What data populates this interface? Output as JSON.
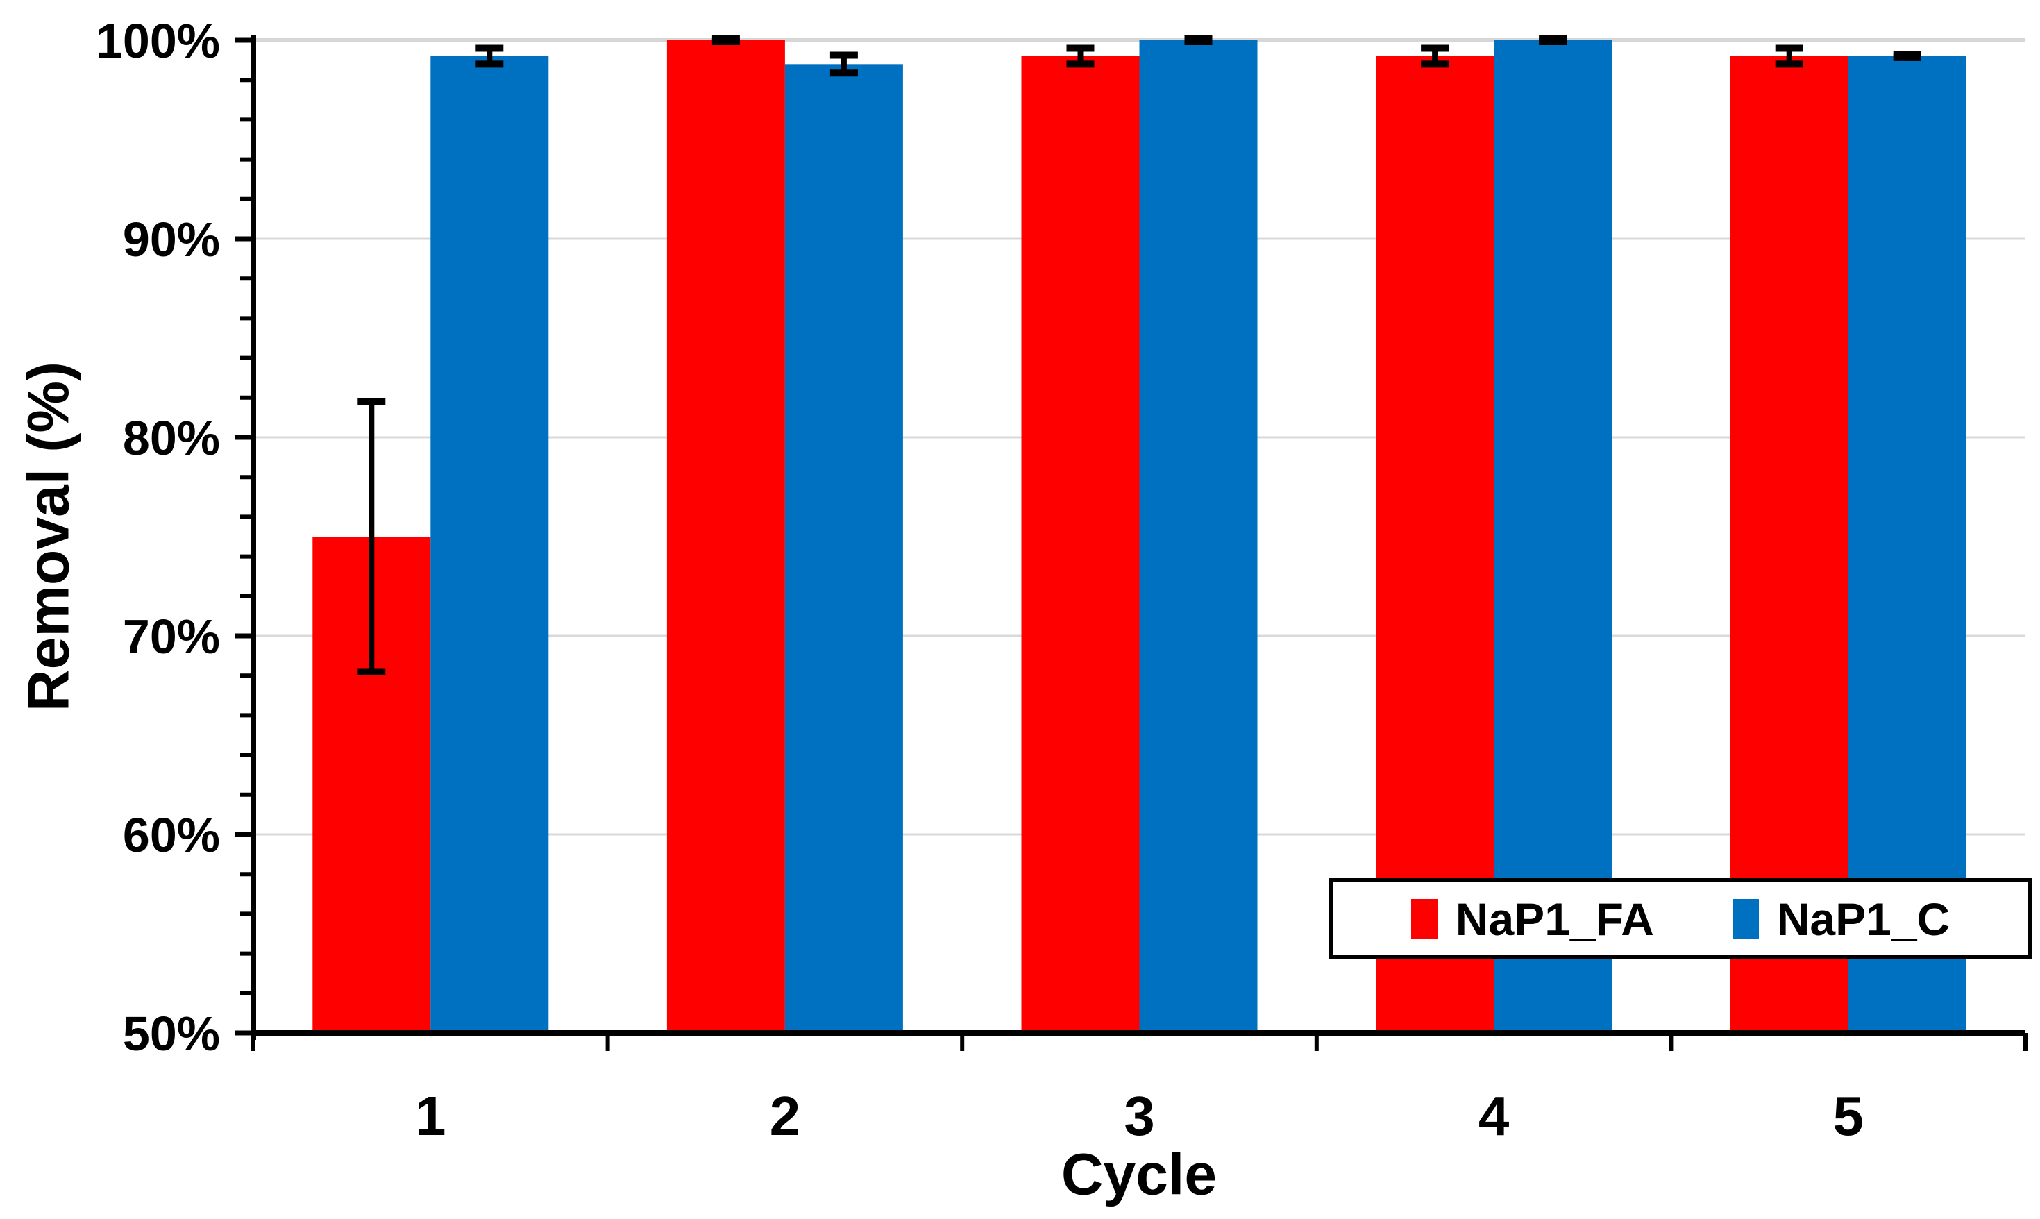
{
  "figure": {
    "background": "#FFFFFF",
    "axis_color": "#000000",
    "gridline_color": "#D9D9D9",
    "top_gridline_color": "#D6D6D6"
  },
  "legend": {
    "items": [
      {
        "label": "NaP1_FA",
        "color": "#FF0000"
      },
      {
        "label": "NaP1_C",
        "color": "#0070C0"
      }
    ]
  },
  "chart_data": {
    "type": "bar",
    "title": "",
    "categories": [
      "1",
      "2",
      "3",
      "4",
      "5"
    ],
    "series": [
      {
        "name": "NaP1_FA",
        "color": "#FF0000",
        "values": [
          75.0,
          100.0,
          99.2,
          99.2,
          99.2
        ],
        "error": [
          6.8,
          0.07,
          0.4,
          0.4,
          0.4
        ]
      },
      {
        "name": "NaP1_C",
        "color": "#0070C0",
        "values": [
          99.2,
          98.8,
          100.0,
          100.0,
          99.2
        ],
        "error": [
          0.4,
          0.45,
          0.07,
          0.07,
          0.07
        ]
      }
    ],
    "xlabel": "Cycle",
    "ylabel": "Removal (%)",
    "ylim": [
      50,
      100
    ],
    "y_major_tick_step": 10,
    "y_minor_tick_step": 2,
    "y_tick_labels": [
      "50%",
      "60%",
      "70%",
      "80%",
      "90%",
      "100%"
    ],
    "grid": "horizontal-major",
    "error_bars": true,
    "legend_position": "inside-bottom-right"
  }
}
